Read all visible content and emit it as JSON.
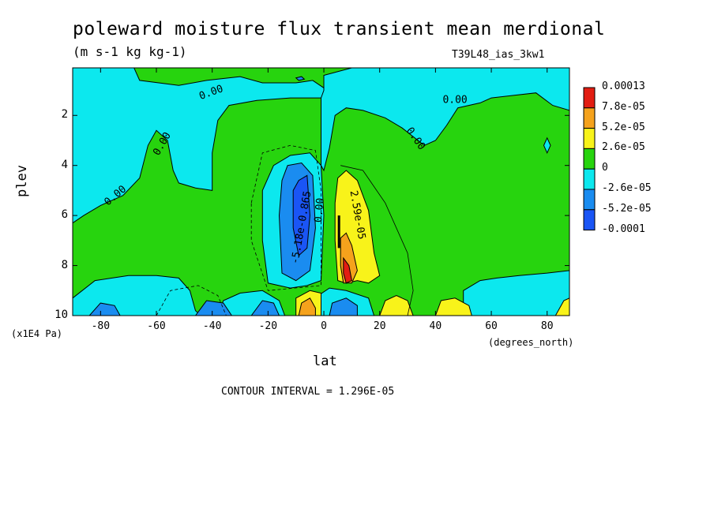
{
  "chart_data": {
    "type": "contour",
    "title": "poleward moisture flux transient mean merdional",
    "units": "(m s-1 kg kg-1)",
    "run_name": "T39L48_ias_3kw1",
    "xlabel": "lat",
    "x_units": "(degrees_north)",
    "ylabel": "plev",
    "y_units": "(x1E4 Pa)",
    "xlim": [
      -90,
      88
    ],
    "ylim": [
      10,
      0.1
    ],
    "x_ticks": [
      -80,
      -60,
      -40,
      -20,
      0,
      20,
      40,
      60,
      80
    ],
    "x_tick_labels": [
      "-80",
      "-60",
      "-40",
      "-20",
      "0",
      "20",
      "40",
      "60",
      "80"
    ],
    "y_ticks": [
      2,
      4,
      6,
      8,
      10
    ],
    "y_tick_labels": [
      "2",
      "4",
      "6",
      "8",
      "10"
    ],
    "colorbar": {
      "levels": [
        "0.00013",
        "7.8e-05",
        "5.2e-05",
        "2.6e-05",
        "0",
        "-2.6e-05",
        "-5.2e-05",
        "-0.0001"
      ],
      "colors": [
        "#e21d12",
        "#f5a21c",
        "#f8f31a",
        "#27d40e",
        "#0ce8ee",
        "#1a8cf0",
        "#1a55f5"
      ]
    },
    "contour_labels": [
      {
        "text": "0.00",
        "lat": -74,
        "plev": 5.3,
        "angle": -40
      },
      {
        "text": "0.00",
        "lat": -57,
        "plev": 3.2,
        "angle": -60
      },
      {
        "text": "0.00",
        "lat": -40,
        "plev": 1.2,
        "angle": -20
      },
      {
        "text": "0.00",
        "lat": 47,
        "plev": 1.5,
        "angle": 0
      },
      {
        "text": "0.00",
        "lat": 32,
        "plev": 3.0,
        "angle": 55
      },
      {
        "text": "-5.18e-0.865",
        "lat": -7,
        "plev": 6.5,
        "angle": -80
      },
      {
        "text": "0.00",
        "lat": -0.5,
        "plev": 5.8,
        "angle": -85
      },
      {
        "text": "2.59e-05",
        "lat": 11,
        "plev": 6.0,
        "angle": 80
      }
    ],
    "contour_interval_text": "CONTOUR INTERVAL = 1.296E-05",
    "colors": {
      "red": "#e21d12",
      "orange": "#f5a21c",
      "yellow": "#f8f31a",
      "green": "#27d40e",
      "cyan": "#0ce8ee",
      "blue": "#1a8cf0",
      "darkblue": "#1a55f5"
    }
  }
}
